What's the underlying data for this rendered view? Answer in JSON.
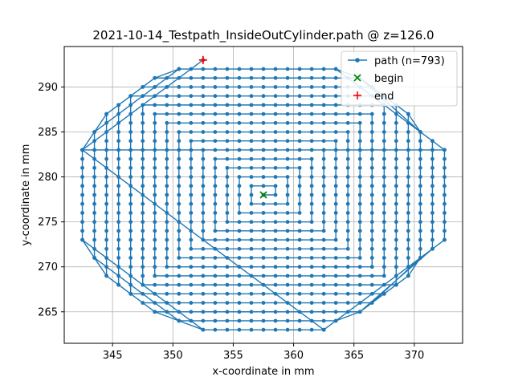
{
  "chart_data": {
    "type": "line",
    "title": "2021-10-14_Testpath_InsideOutCylinder.path @ z=126.0",
    "xlabel": "x-coordinate in mm",
    "ylabel": "y-coordinate in mm",
    "xlim": [
      41.0,
      74.0
    ],
    "ylim": [
      261.5,
      294.5
    ],
    "x_offset": 300,
    "xticks": [
      345,
      350,
      355,
      360,
      365,
      370
    ],
    "yticks": [
      265,
      270,
      275,
      280,
      285,
      290
    ],
    "grid": true,
    "legend_position": "top-right",
    "colors": {
      "path": "#1f77b4",
      "begin": "#008000",
      "end": "#ff0000",
      "grid": "#b0b0b0"
    },
    "series": [
      {
        "name": "path (n=793)",
        "kind": "line-with-markers"
      },
      {
        "name": "begin",
        "kind": "marker-x",
        "x": 357.5,
        "y": 278
      },
      {
        "name": "end",
        "kind": "marker-plus",
        "x": 352.5,
        "y": 293
      }
    ],
    "path_geometry": {
      "spiral_center": [
        357.5,
        278
      ],
      "ring_count": 15,
      "ring_spacing": 1,
      "point_spacing": 1,
      "outer_boundary": [
        [
          342.5,
          283
        ],
        [
          343.5,
          285
        ],
        [
          344.5,
          287
        ],
        [
          345.5,
          288
        ],
        [
          346.5,
          289
        ],
        [
          348.5,
          291
        ],
        [
          350.5,
          292
        ],
        [
          363.5,
          292
        ],
        [
          365.5,
          291
        ],
        [
          367.5,
          289
        ],
        [
          368.5,
          288
        ],
        [
          369.5,
          287
        ],
        [
          370.5,
          285
        ],
        [
          371.5,
          284
        ],
        [
          372.5,
          283
        ],
        [
          372.5,
          273
        ],
        [
          371.5,
          272
        ],
        [
          370.5,
          271
        ],
        [
          369.5,
          269
        ],
        [
          368.5,
          268
        ],
        [
          367.5,
          267
        ],
        [
          365.5,
          265
        ],
        [
          363.5,
          264
        ],
        [
          362.5,
          263
        ],
        [
          352.5,
          263
        ],
        [
          350.5,
          264
        ],
        [
          348.5,
          265
        ],
        [
          346.5,
          267
        ],
        [
          345.5,
          268
        ],
        [
          344.5,
          269
        ],
        [
          343.5,
          271
        ],
        [
          342.5,
          273
        ]
      ]
    }
  }
}
